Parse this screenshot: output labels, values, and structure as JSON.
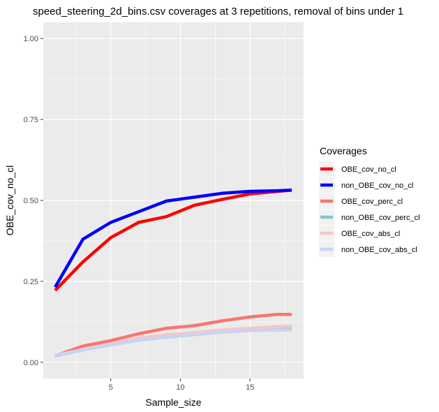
{
  "chart_data": {
    "type": "line",
    "title": "speed_steering_2d_bins.csv coverages at 3 repetitions, removal of bins under 1",
    "xlabel": "Sample_size",
    "ylabel": "OBE_cov_no_cl",
    "xlim": [
      0.15,
      18.85
    ],
    "ylim": [
      -0.05,
      1.05
    ],
    "x_ticks": [
      5,
      10,
      15
    ],
    "x_tick_labels": [
      "5",
      "10",
      "15"
    ],
    "y_ticks": [
      0,
      0.25,
      0.5,
      0.75,
      1.0
    ],
    "y_tick_labels": [
      "0.00",
      "0.25",
      "0.50",
      "0.75",
      "1.00"
    ],
    "grid": true,
    "legend_title": "Coverages",
    "legend_position": "right",
    "x": [
      1,
      3,
      5,
      7,
      9,
      11,
      13,
      15,
      17,
      18
    ],
    "series": [
      {
        "name": "OBE_cov_no_cl",
        "color": "#ff0000",
        "values": [
          0.222,
          0.31,
          0.385,
          0.432,
          0.45,
          0.485,
          0.503,
          0.52,
          0.528,
          0.532
        ]
      },
      {
        "name": "non_OBE_cov_no_cl",
        "color": "#0000ff",
        "values": [
          0.232,
          0.38,
          0.432,
          0.465,
          0.498,
          0.51,
          0.522,
          0.528,
          0.53,
          0.532
        ]
      },
      {
        "name": "OBE_cov_perc_cl",
        "color": "#f8766d",
        "values": [
          0.02,
          0.05,
          0.067,
          0.088,
          0.105,
          0.113,
          0.128,
          0.14,
          0.148,
          0.148
        ]
      },
      {
        "name": "non_OBE_cov_perc_cl",
        "color": "#7fc8c8",
        "values": [
          0.02,
          0.038,
          0.055,
          0.07,
          0.078,
          0.086,
          0.095,
          0.1,
          0.102,
          0.102
        ]
      },
      {
        "name": "OBE_cov_abs_cl",
        "color": "#f6c6c6",
        "values": [
          0.02,
          0.04,
          0.057,
          0.075,
          0.085,
          0.092,
          0.1,
          0.105,
          0.11,
          0.112
        ]
      },
      {
        "name": "non_OBE_cov_abs_cl",
        "color": "#c6d4f4",
        "values": [
          0.022,
          0.038,
          0.053,
          0.068,
          0.077,
          0.085,
          0.093,
          0.098,
          0.1,
          0.1
        ]
      }
    ],
    "draw_order": [
      2,
      3,
      4,
      5,
      0,
      1
    ]
  }
}
